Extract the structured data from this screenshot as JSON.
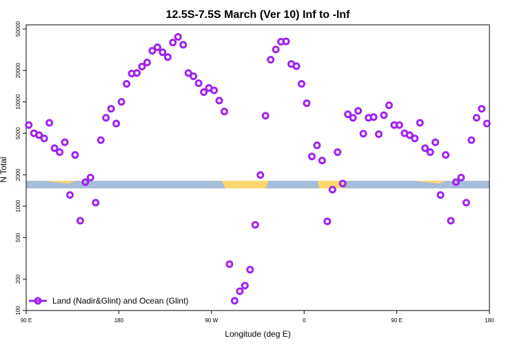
{
  "chart_data": {
    "type": "scatter",
    "title": "12.5S-7.5S March (Ver 10)   Inf to -Inf",
    "x_label": "Longitude (deg E)",
    "y_label": "N Total",
    "log_y": true,
    "legend_position": "bottom-left",
    "xlim": [
      90,
      540
    ],
    "xticks": [
      {
        "value": 90,
        "label": "90 E"
      },
      {
        "value": 180,
        "label": "180"
      },
      {
        "value": 270,
        "label": "90 W"
      },
      {
        "value": 360,
        "label": "0"
      },
      {
        "value": 450,
        "label": "90 E"
      },
      {
        "value": 540,
        "label": "180"
      }
    ],
    "ylim": [
      100,
      50000
    ],
    "yticks": [
      100,
      200,
      500,
      1000,
      2000,
      5000,
      10000,
      20000,
      50000
    ],
    "series": [
      {
        "name": "Land (Nadir&Glint) and Ocean (Glint)",
        "color": "#a020f0",
        "x": [
          92.5,
          97.5,
          102.5,
          107.5,
          112.5,
          117.5,
          122.5,
          127.5,
          132.5,
          137.5,
          142.5,
          147.5,
          152.5,
          157.5,
          162.5,
          167.5,
          172.5,
          177.5,
          182.5,
          187.5,
          192.5,
          197.5,
          202.5,
          207.5,
          212.5,
          217.5,
          222.5,
          227.5,
          232.5,
          237.5,
          242.5,
          247.5,
          252.5,
          257.5,
          262.5,
          267.5,
          272.5,
          277.5,
          282.5,
          287.5,
          292.5,
          297.5,
          302.5,
          307.5,
          312.5,
          317.5,
          322.5,
          327.5,
          332.5,
          337.5,
          342.5,
          347.5,
          352.5,
          357.5,
          362.5,
          367.5,
          372.5,
          377.5,
          382.5,
          387.5,
          392.5,
          397.5,
          402.5,
          407.5,
          412.5,
          417.5,
          422.5,
          427.5,
          432.5,
          437.5,
          442.5,
          447.5,
          452.5,
          457.5,
          462.5,
          467.5,
          472.5,
          477.5,
          482.5,
          487.5,
          492.5,
          497.5,
          502.5,
          507.5,
          512.5,
          517.5,
          522.5,
          527.5,
          532.5,
          537.5
        ],
        "values": [
          6000,
          5000,
          4800,
          4460,
          6300,
          3600,
          3300,
          4100,
          1280,
          3100,
          726,
          1700,
          1880,
          1080,
          4300,
          7040,
          8600,
          6200,
          10000,
          14900,
          18700,
          18900,
          21800,
          23900,
          30900,
          33400,
          29900,
          26900,
          37100,
          42000,
          35300,
          18900,
          17600,
          15100,
          12400,
          13600,
          12900,
          10300,
          8080,
          278,
          124,
          153,
          173,
          246,
          662,
          1990,
          7370,
          25400,
          31800,
          37700,
          38000,
          23100,
          22000,
          14900,
          9700,
          3000,
          3830,
          2740,
          715,
          1440,
          3300,
          1650,
          7600,
          7040,
          8200,
          4960,
          7040,
          7150,
          4900,
          7450,
          9270,
          6000,
          6000,
          5000,
          4800,
          4460,
          6300,
          3600,
          3300,
          4100,
          1280,
          3100,
          726,
          1700,
          1880,
          1080,
          4300,
          7040,
          8600,
          6200
        ]
      }
    ]
  }
}
